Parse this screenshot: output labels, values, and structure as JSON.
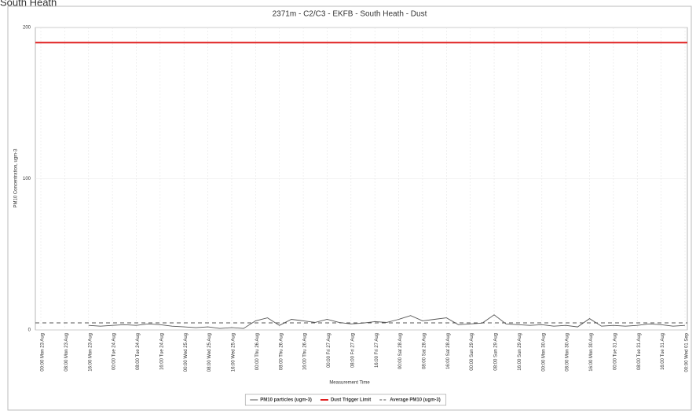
{
  "page_header": "South Heath",
  "chart_data": {
    "type": "line",
    "title": "2371m - C2/C3 - EKFB - South Heath - Dust",
    "x_label": "Measurement Time",
    "y_label": "PM10 Concentration, ugm-3",
    "categories": [
      "00:00 Mon 23 Aug",
      null,
      "08:00 Mon 23 Aug",
      null,
      "16:00 Mon 23 Aug",
      null,
      "00:00 Tue 24 Aug",
      null,
      "08:00 Tue 24 Aug",
      null,
      "16:00 Tue 24 Aug",
      null,
      "00:00 Wed 25 Aug",
      null,
      "08:00 Wed 25 Aug",
      null,
      "16:00 Wed 25 Aug",
      null,
      "00:00 Thu 26 Aug",
      null,
      "08:00 Thu 26 Aug",
      null,
      "16:00 Thu 26 Aug",
      null,
      "00:00 Fri 27 Aug",
      null,
      "08:00 Fri 27 Aug",
      null,
      "16:00 Fri 27 Aug",
      null,
      "00:00 Sat 28 Aug",
      null,
      "08:00 Sat 28 Aug",
      null,
      "16:00 Sat 28 Aug",
      null,
      "00:00 Sun 29 Aug",
      null,
      "08:00 Sun 29 Aug",
      null,
      "16:00 Sun 29 Aug",
      null,
      "00:00 Mon 30 Aug",
      null,
      "08:00 Mon 30 Aug",
      null,
      "16:00 Mon 30 Aug",
      null,
      "00:00 Tue 31 Aug",
      null,
      "08:00 Tue 31 Aug",
      null,
      "16:00 Tue 31 Aug",
      null,
      "00:00 Wed 01 Sep"
    ],
    "series": [
      {
        "name": "PM10 particles (ugm-3)",
        "color": "#555555",
        "values": [
          null,
          null,
          null,
          null,
          3,
          2.5,
          3,
          3.5,
          3,
          4,
          3.5,
          2.5,
          2,
          1.5,
          2,
          1,
          1.5,
          1,
          6,
          8,
          3,
          7,
          6,
          5,
          7,
          5,
          4,
          4.5,
          5.5,
          5,
          7,
          9.5,
          6,
          7,
          8,
          3.5,
          4,
          4.5,
          10,
          4,
          3.5,
          3,
          3.5,
          2.5,
          3,
          2,
          7.5,
          2.5,
          3,
          2.5,
          3,
          4,
          3.5,
          2.5,
          3
        ]
      }
    ],
    "reference_lines": [
      {
        "name": "Dust Trigger Limit",
        "color": "#e02020",
        "value": 190,
        "dashed": false
      },
      {
        "name": "Average PM10 (ugm-3)",
        "color": "#555555",
        "value": 4.7,
        "dashed": true
      }
    ],
    "ylim": [
      0,
      200
    ],
    "yticks": [
      0,
      100,
      200
    ],
    "grid": true,
    "legend": "bottom"
  }
}
